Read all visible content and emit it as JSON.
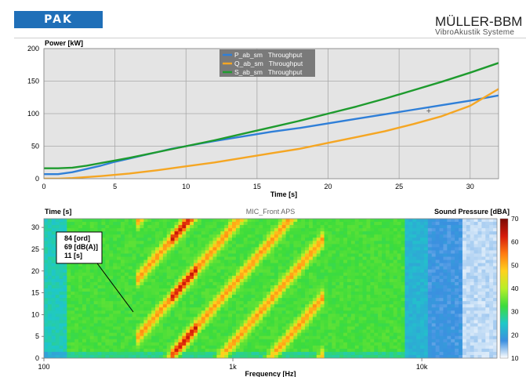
{
  "header": {
    "logo_text": "PAK",
    "brand_title": "MÜLLER-BBM",
    "brand_subtitle": "VibroAkustik Systeme"
  },
  "chart_data": [
    {
      "type": "line",
      "ylabel": "Power [kW]",
      "xlabel": "Time [s]",
      "xlim": [
        0,
        32
      ],
      "ylim": [
        0,
        200
      ],
      "xticks": [
        0,
        5,
        10,
        15,
        20,
        25,
        30
      ],
      "yticks": [
        0,
        50,
        100,
        150,
        200
      ],
      "grid": true,
      "legend_position": "top-center",
      "series": [
        {
          "name": "P_ab_sm   Throughput",
          "color": "#2f7fd8",
          "x": [
            0,
            1,
            2,
            3,
            4,
            5,
            6,
            7,
            8,
            9,
            10,
            12,
            14,
            16,
            18,
            20,
            22,
            24,
            26,
            28,
            30,
            32
          ],
          "values": [
            7,
            7,
            10,
            15,
            20,
            26,
            31,
            36,
            41,
            46,
            50,
            58,
            65,
            72,
            78,
            85,
            92,
            99,
            106,
            113,
            120,
            128
          ]
        },
        {
          "name": "Q_ab_sm   Throughput",
          "color": "#f5a623",
          "x": [
            0,
            1,
            2,
            4,
            6,
            8,
            10,
            12,
            14,
            16,
            18,
            20,
            22,
            24,
            26,
            28,
            30,
            32
          ],
          "values": [
            0,
            0,
            1,
            4,
            8,
            13,
            19,
            25,
            32,
            39,
            46,
            55,
            64,
            73,
            84,
            96,
            112,
            138
          ]
        },
        {
          "name": "S_ab_sm   Throughput",
          "color": "#1e9b2e",
          "x": [
            0,
            1,
            2,
            3,
            4,
            5,
            6,
            8,
            10,
            12,
            14,
            16,
            18,
            20,
            22,
            24,
            26,
            28,
            30,
            32
          ],
          "values": [
            16,
            16,
            17,
            20,
            24,
            28,
            32,
            41,
            50,
            59,
            69,
            79,
            89,
            100,
            111,
            123,
            136,
            149,
            163,
            178
          ]
        }
      ],
      "annotations": [
        "+"
      ]
    },
    {
      "type": "heatmap",
      "title": "MIC_Front   APS",
      "ylabel": "Time [s]",
      "xlabel": "Frequency [Hz]",
      "colorbar_label": "Sound Pressure [dBA]",
      "ylim": [
        0,
        32
      ],
      "yticks": [
        0,
        5,
        10,
        15,
        20,
        25,
        30
      ],
      "xscale": "log",
      "xlim": [
        100,
        25000
      ],
      "xticks": [
        100,
        1000,
        10000
      ],
      "xtick_labels": [
        "100",
        "1k",
        "10k"
      ],
      "zlim": [
        10,
        70
      ],
      "zticks": [
        10,
        20,
        30,
        40,
        50,
        60,
        70
      ],
      "colormap": [
        "#ffffff",
        "#3b8fe0",
        "#1fc8c8",
        "#3cdc3c",
        "#b8ef28",
        "#ffd21e",
        "#ff7a10",
        "#d61a0a",
        "#7a0a05"
      ],
      "cursor_readout": [
        "84  [ord]",
        "69  [dB(A)]",
        "11  [s]"
      ]
    }
  ]
}
